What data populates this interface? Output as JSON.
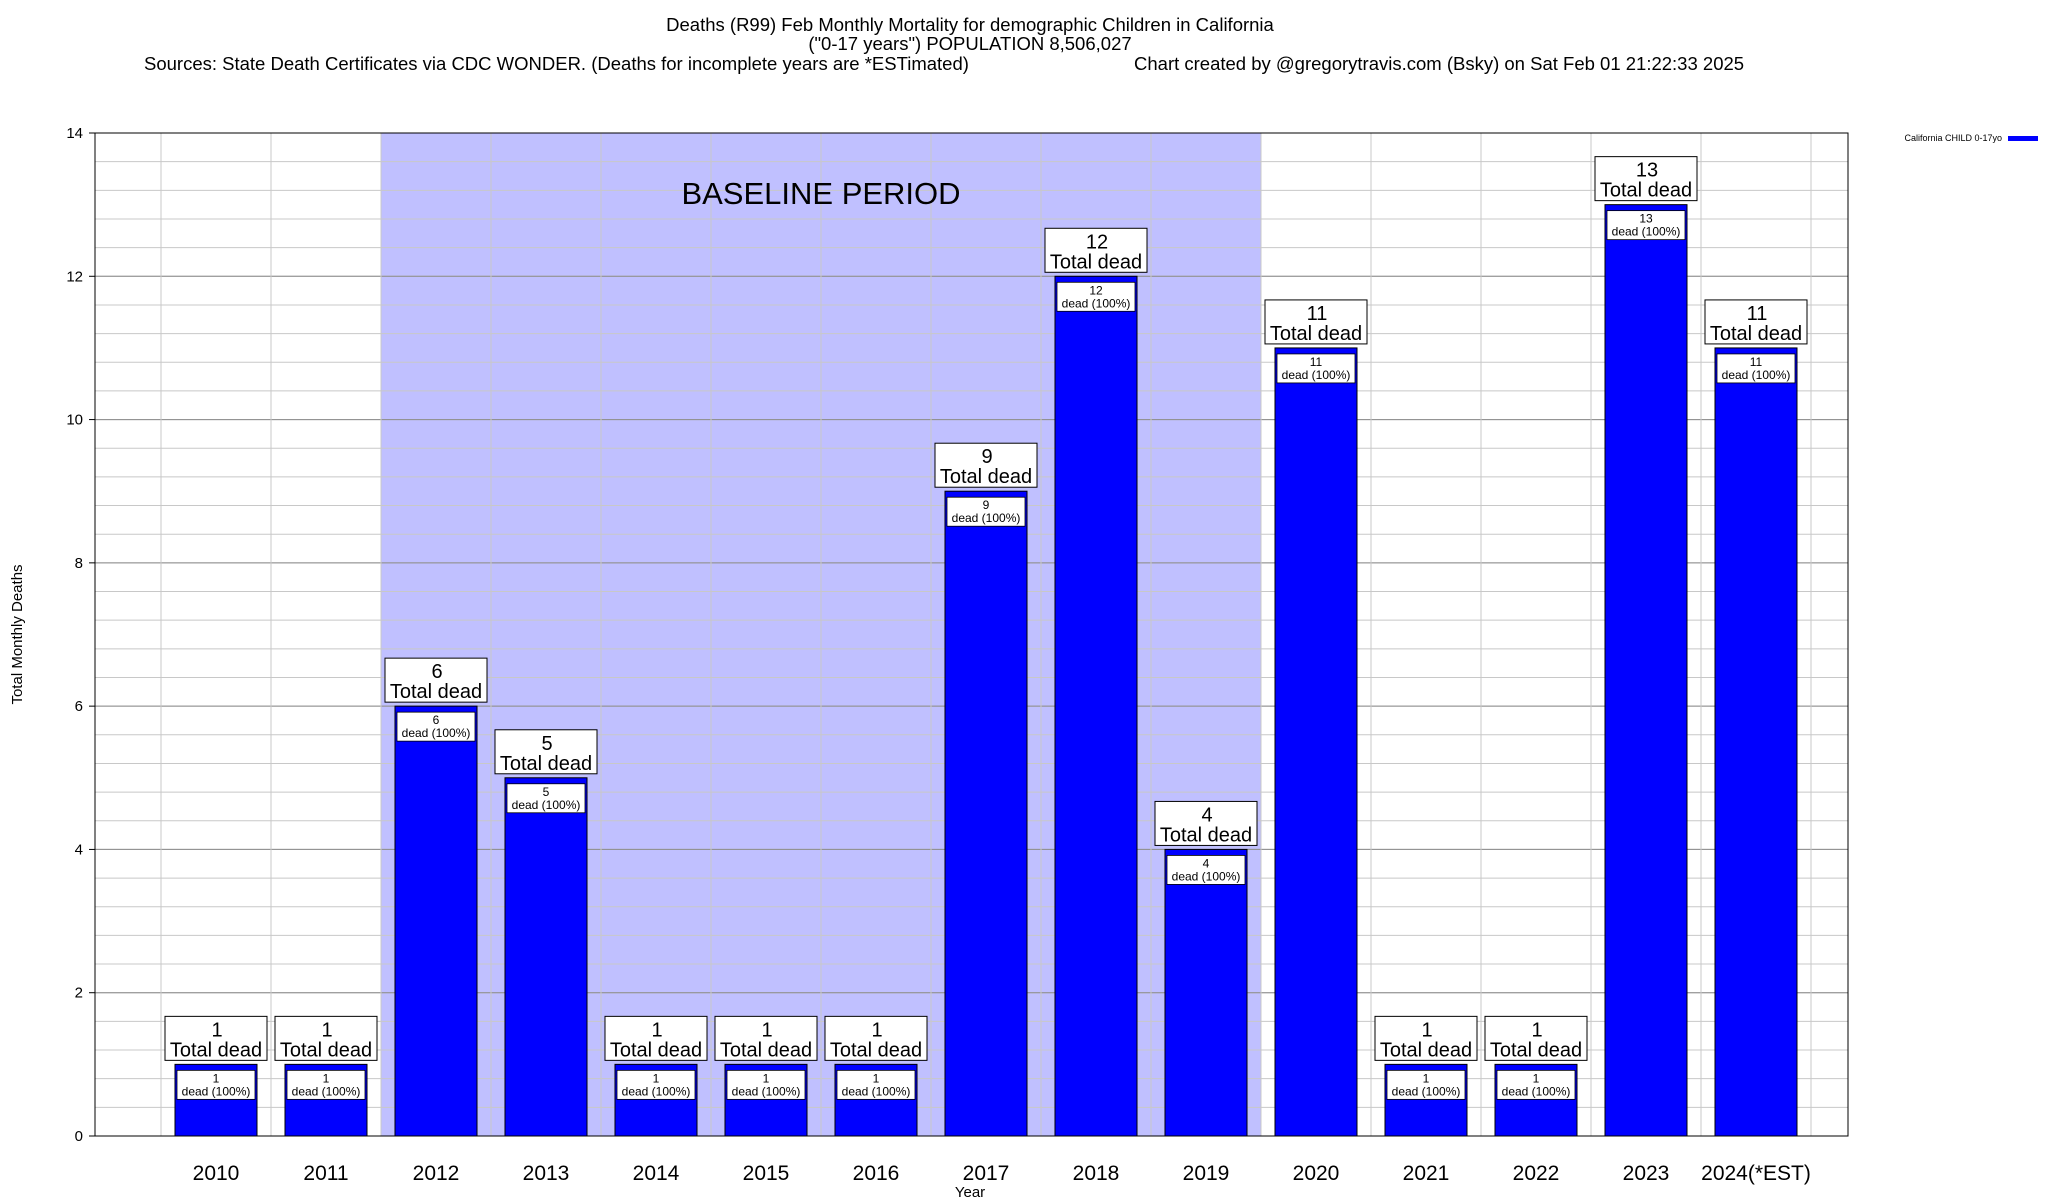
{
  "chart_data": {
    "type": "bar",
    "title_lines": [
      "Deaths (R99) Feb Monthly Mortality for demographic Children in California",
      "(\"0-17 years\") POPULATION 8,506,027"
    ],
    "sources": "Sources: State Death Certificates via CDC WONDER. (Deaths for incomplete years are *ESTimated)",
    "credit": "Chart created by @gregorytravis.com (Bsky) on Sat Feb 01 21:22:33 2025",
    "xlabel": "Year",
    "ylabel": "Total Monthly Deaths",
    "ylim": [
      0,
      14
    ],
    "yticks": [
      0,
      2,
      4,
      6,
      8,
      10,
      12,
      14
    ],
    "minor_step": 0.4,
    "categories": [
      "2010",
      "2011",
      "2012",
      "2013",
      "2014",
      "2015",
      "2016",
      "2017",
      "2018",
      "2019",
      "2020",
      "2021",
      "2022",
      "2023",
      "2024(*EST)"
    ],
    "series": [
      {
        "name": "California CHILD 0-17yo",
        "color": "#0000ff",
        "values": [
          1,
          1,
          6,
          5,
          1,
          1,
          1,
          9,
          12,
          4,
          11,
          1,
          1,
          13,
          11
        ]
      }
    ],
    "total_label_suffix": "Total dead",
    "inner_label_suffix": "dead (100%)",
    "baseline": {
      "label": "BASELINE PERIOD",
      "from": "2012",
      "to": "2019",
      "color": "#c0c0ff"
    },
    "legend_position": "top-right",
    "grid": true
  }
}
